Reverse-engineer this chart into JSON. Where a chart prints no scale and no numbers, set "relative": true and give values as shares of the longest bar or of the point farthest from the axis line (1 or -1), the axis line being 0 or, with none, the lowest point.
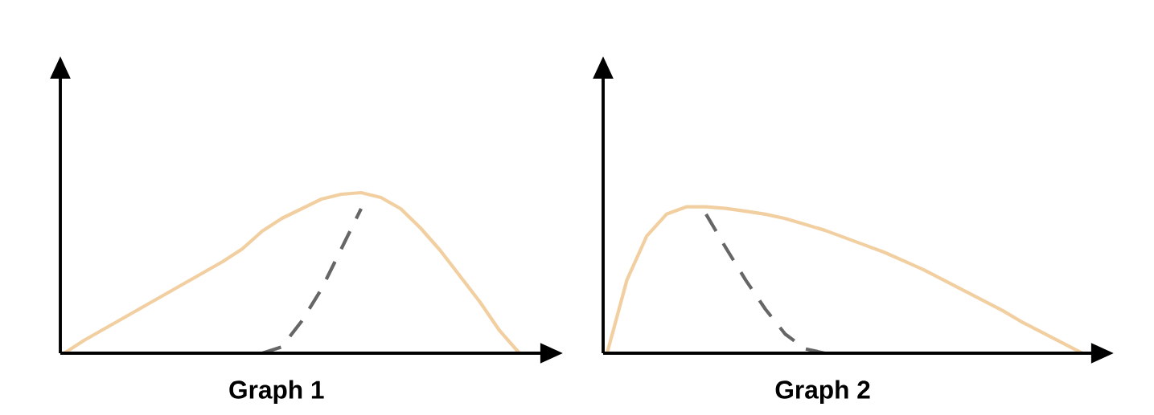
{
  "chart_data": [
    {
      "type": "line",
      "xlabel": "Graph 1",
      "relative": true,
      "categories": [
        null,
        null,
        null,
        null,
        null,
        null,
        null,
        null,
        null,
        null,
        null,
        null,
        null,
        null,
        null,
        null,
        null,
        null,
        null,
        null,
        null,
        null,
        null,
        null,
        null
      ],
      "series": [
        {
          "color": "#f2cfa0",
          "line_style": "solid",
          "values": [
            0,
            0.08,
            0.15,
            0.22,
            0.29,
            0.36,
            0.43,
            0.5,
            0.57,
            0.65,
            0.76,
            0.84,
            0.9,
            0.96,
            0.99,
            1.0,
            0.97,
            0.9,
            0.78,
            0.64,
            0.48,
            0.32,
            0.14,
            0,
            null
          ]
        },
        {
          "color": "#666666",
          "line_style": "dashed",
          "values": [
            null,
            null,
            null,
            null,
            null,
            null,
            null,
            null,
            null,
            null,
            0,
            0.04,
            0.2,
            0.4,
            0.65,
            0.9,
            null,
            null,
            null,
            null,
            null,
            null,
            null,
            null,
            null
          ]
        }
      ]
    },
    {
      "type": "line",
      "xlabel": "Graph 2",
      "relative": true,
      "categories": [
        null,
        null,
        null,
        null,
        null,
        null,
        null,
        null,
        null,
        null,
        null,
        null,
        null,
        null,
        null,
        null,
        null,
        null,
        null,
        null,
        null,
        null,
        null,
        null,
        null
      ],
      "series": [
        {
          "color": "#f2cfa0",
          "line_style": "solid",
          "values": [
            0,
            0.5,
            0.8,
            0.95,
            1.0,
            1.0,
            0.99,
            0.97,
            0.95,
            0.92,
            0.88,
            0.84,
            0.79,
            0.74,
            0.69,
            0.63,
            0.57,
            0.5,
            0.43,
            0.36,
            0.29,
            0.21,
            0.14,
            0.07,
            0
          ]
        },
        {
          "color": "#666666",
          "line_style": "dashed",
          "values": [
            null,
            null,
            null,
            null,
            null,
            0.95,
            0.72,
            0.5,
            0.3,
            0.13,
            0.03,
            0,
            null,
            null,
            null,
            null,
            null,
            null,
            null,
            null,
            null,
            null,
            null,
            null,
            null
          ]
        }
      ]
    }
  ]
}
